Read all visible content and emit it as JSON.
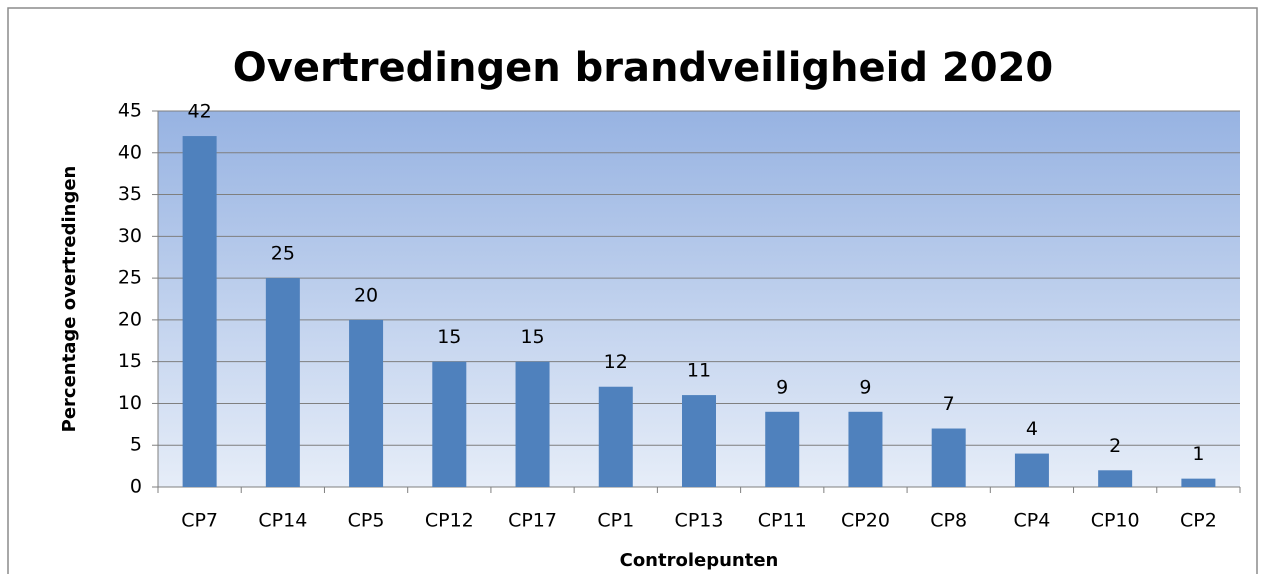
{
  "chart_data": {
    "type": "bar",
    "title": "Overtredingen brandveiligheid 2020",
    "x_label": "Controlepunten",
    "y_label": "Percentage overtredingen",
    "categories": [
      "CP7",
      "CP14",
      "CP5",
      "CP12",
      "CP17",
      "CP1",
      "CP13",
      "CP11",
      "CP20",
      "CP8",
      "CP4",
      "CP10",
      "CP2"
    ],
    "values": [
      42,
      25,
      20,
      15,
      15,
      12,
      11,
      9,
      9,
      7,
      4,
      2,
      1
    ],
    "color": "#4f81bd",
    "ylim": [
      0,
      45
    ],
    "yticks": [
      0,
      5,
      10,
      15,
      20,
      25,
      30,
      35,
      40,
      45
    ],
    "grid": true
  }
}
